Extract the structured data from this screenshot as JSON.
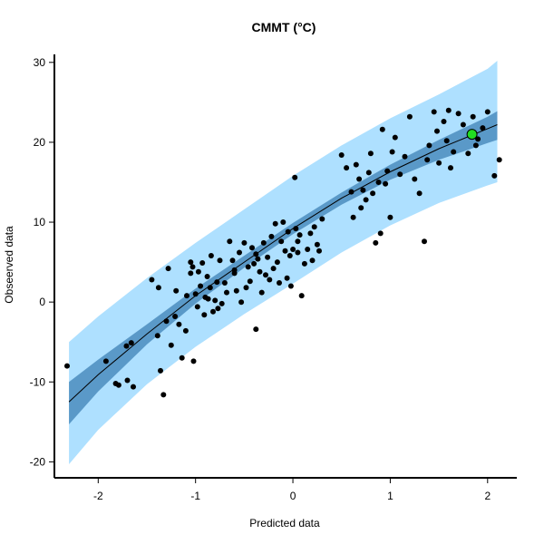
{
  "chart_data": {
    "type": "scatter",
    "title": "CMMT (°C)",
    "xlabel": "Predicted data",
    "ylabel": "Obseerved data",
    "xlim": [
      -2.45,
      2.3
    ],
    "ylim": [
      -22,
      31
    ],
    "x_ticks": [
      -2,
      -1,
      0,
      1,
      2
    ],
    "y_ticks": [
      -20,
      -10,
      0,
      10,
      20,
      30
    ],
    "colors": {
      "prediction_band": "#aee0ff",
      "confidence_band": "#5a99c8",
      "fit_line": "#000000",
      "points": "#000000",
      "highlight_point": "#22dd22"
    },
    "fit": {
      "x": [
        -2.3,
        -2.0,
        -1.5,
        -1.0,
        -0.5,
        0.0,
        0.5,
        1.0,
        1.5,
        2.0,
        2.1
      ],
      "y": [
        -12.5,
        -9.1,
        -4.0,
        0.8,
        5.0,
        9.2,
        13.0,
        16.3,
        19.2,
        21.7,
        22.2
      ],
      "conf_upper": [
        -10.0,
        -7.2,
        -2.8,
        1.7,
        5.8,
        9.9,
        13.7,
        17.2,
        20.3,
        23.2,
        23.9
      ],
      "conf_lower": [
        -15.3,
        -11.2,
        -5.3,
        -0.2,
        4.3,
        8.5,
        12.2,
        15.3,
        17.8,
        19.9,
        20.3
      ],
      "pred_upper": [
        -5.0,
        -1.8,
        3.0,
        7.4,
        11.6,
        15.8,
        19.6,
        23.0,
        26.0,
        29.2,
        30.2
      ],
      "pred_lower": [
        -20.3,
        -16.0,
        -10.3,
        -5.6,
        -1.5,
        2.3,
        6.2,
        9.6,
        12.4,
        14.6,
        15.0
      ]
    },
    "highlight": {
      "x": 1.84,
      "y": 21.0
    },
    "points": {
      "x": [
        -2.32,
        -1.92,
        -1.82,
        -1.79,
        -1.71,
        -1.7,
        -1.66,
        -1.64,
        -1.45,
        -1.39,
        -1.38,
        -1.36,
        -1.33,
        -1.3,
        -1.28,
        -1.25,
        -1.21,
        -1.2,
        -1.17,
        -1.14,
        -1.1,
        -1.09,
        -1.05,
        -1.03,
        -1.02,
        -1.0,
        -0.98,
        -0.97,
        -0.95,
        -0.93,
        -0.91,
        -0.9,
        -0.88,
        -0.87,
        -0.85,
        -0.84,
        -0.82,
        -0.8,
        -0.78,
        -0.77,
        -0.75,
        -0.73,
        -0.7,
        -0.68,
        -0.65,
        -0.62,
        -0.6,
        -0.58,
        -0.55,
        -0.53,
        -0.5,
        -0.48,
        -0.46,
        -0.44,
        -0.42,
        -0.4,
        -0.38,
        -0.36,
        -0.34,
        -0.32,
        -0.3,
        -0.28,
        -0.26,
        -0.24,
        -0.22,
        -0.2,
        -0.18,
        -0.16,
        -0.14,
        -0.12,
        -0.1,
        -0.08,
        -0.06,
        -0.05,
        -0.03,
        -0.02,
        0.0,
        0.02,
        0.03,
        0.05,
        0.07,
        0.09,
        0.12,
        0.15,
        0.18,
        0.2,
        0.22,
        0.25,
        0.27,
        0.3,
        0.5,
        0.55,
        0.6,
        0.62,
        0.65,
        0.68,
        0.7,
        0.72,
        0.75,
        0.78,
        0.8,
        0.82,
        0.85,
        0.88,
        0.9,
        0.92,
        0.95,
        0.97,
        1.0,
        1.02,
        1.05,
        1.1,
        1.15,
        1.2,
        1.25,
        1.3,
        1.35,
        1.38,
        1.4,
        1.45,
        1.48,
        1.5,
        1.55,
        1.58,
        1.6,
        1.62,
        1.65,
        1.7,
        1.75,
        1.8,
        1.85,
        1.88,
        1.9,
        1.95,
        2.0,
        2.07,
        2.12,
        -0.38,
        0.05,
        -1.05,
        -0.6
      ],
      "y": [
        -8.0,
        -7.4,
        -10.2,
        -10.4,
        -5.5,
        -9.8,
        -5.1,
        -10.6,
        2.8,
        -4.2,
        1.8,
        -8.6,
        -11.6,
        -2.4,
        4.2,
        -5.4,
        -1.8,
        1.4,
        -2.8,
        -7.0,
        -3.6,
        0.8,
        5.0,
        4.4,
        -7.4,
        1.0,
        -0.6,
        3.8,
        2.0,
        4.9,
        -1.6,
        0.6,
        3.2,
        0.4,
        1.8,
        5.8,
        -1.2,
        0.2,
        2.5,
        -0.8,
        5.2,
        -0.2,
        2.4,
        1.2,
        7.6,
        5.2,
        3.6,
        1.4,
        6.2,
        0.0,
        7.4,
        1.8,
        4.4,
        2.6,
        6.8,
        4.8,
        6.0,
        5.4,
        3.8,
        1.2,
        7.4,
        3.4,
        5.6,
        2.8,
        8.2,
        4.2,
        9.8,
        5.0,
        2.4,
        7.6,
        10.0,
        6.4,
        3.0,
        8.8,
        5.8,
        2.0,
        6.6,
        15.6,
        9.2,
        6.2,
        8.4,
        0.8,
        4.8,
        6.6,
        8.6,
        5.2,
        9.4,
        7.2,
        6.4,
        10.4,
        18.4,
        16.8,
        13.8,
        10.6,
        17.2,
        15.4,
        11.8,
        14.0,
        12.8,
        16.2,
        18.6,
        13.6,
        7.4,
        15.0,
        8.6,
        21.6,
        14.8,
        16.4,
        10.6,
        18.8,
        20.6,
        16.0,
        18.2,
        23.2,
        15.4,
        13.6,
        7.6,
        17.8,
        19.6,
        23.8,
        21.4,
        17.4,
        22.6,
        20.2,
        24.0,
        16.8,
        18.8,
        23.6,
        22.2,
        18.6,
        23.2,
        19.6,
        20.4,
        21.8,
        23.8,
        15.8,
        17.8,
        -3.4,
        7.6,
        3.6,
        4.0
      ]
    }
  }
}
